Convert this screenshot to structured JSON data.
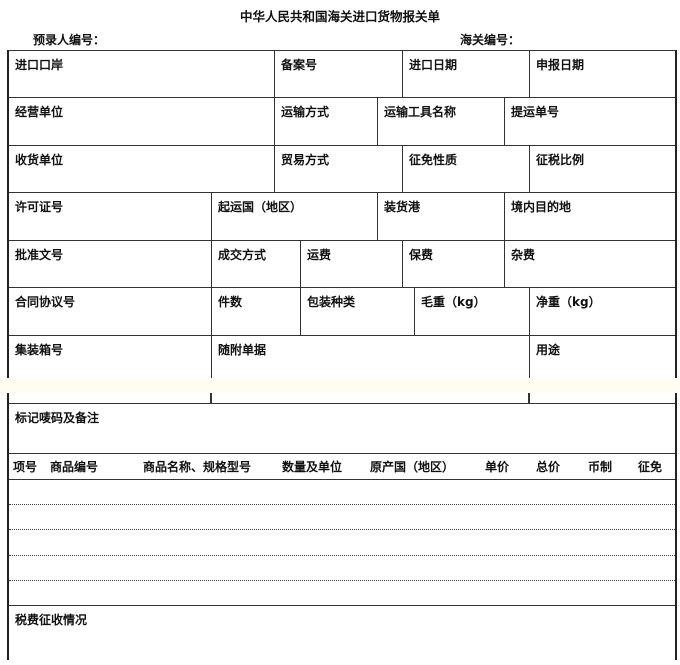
{
  "title": "中华人民共和国海关进口货物报关单",
  "header": {
    "preentry_no": "预录人编号：",
    "customs_no": "海关编号："
  },
  "rows": [
    [
      "进口口岸",
      "备案号",
      "进口日期",
      "申报日期"
    ],
    [
      "经营单位",
      "运输方式",
      "运输工具名称",
      "提运单号"
    ],
    [
      "收货单位",
      "贸易方式",
      "征免性质",
      "征税比例"
    ],
    [
      "许可证号",
      "起运国（地区）",
      "装货港",
      "境内目的地"
    ],
    [
      "批准文号",
      "成交方式",
      "运费",
      "保费",
      "杂费"
    ],
    [
      "合同协议号",
      "件数",
      "包装种类",
      "毛重（kg）",
      "净重（kg）"
    ],
    [
      "集装箱号",
      "随附单据",
      "用途"
    ]
  ],
  "marks": "标记唛码及备注",
  "items_columns": [
    "项号",
    "商品编号",
    "商品名称、规格型号",
    "数量及单位",
    "原产国（地区）",
    "单价",
    "总价",
    "币制",
    "征免"
  ],
  "tax": "税费征收情况"
}
